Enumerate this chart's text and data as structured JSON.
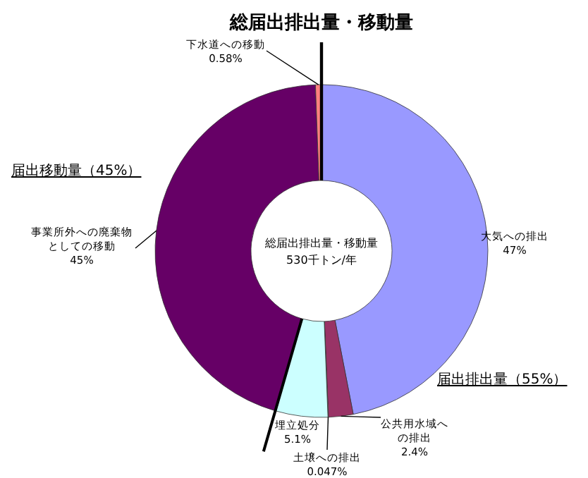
{
  "chart_data": {
    "type": "donut",
    "title": "総届出排出量・移動量",
    "categories": [
      "大気への排出",
      "公共用水域への排出",
      "土壌への排出",
      "埋立処分",
      "事業所外への廃棄物としての移動",
      "下水道への移動"
    ],
    "values": [
      47,
      2.4,
      0.047,
      5.1,
      45,
      0.58
    ],
    "value_labels": [
      "47%",
      "2.4%",
      "0.047%",
      "5.1%",
      "45%",
      "0.58%"
    ],
    "colors": [
      "#9999ff",
      "#993366",
      "#ffffcc",
      "#ccffff",
      "#660066",
      "#ff8080"
    ],
    "annotations": [
      "総届出排出量・移動量",
      "530千トン/年",
      "届出排出量（55%）",
      "届出移動量（45%）"
    ]
  }
}
